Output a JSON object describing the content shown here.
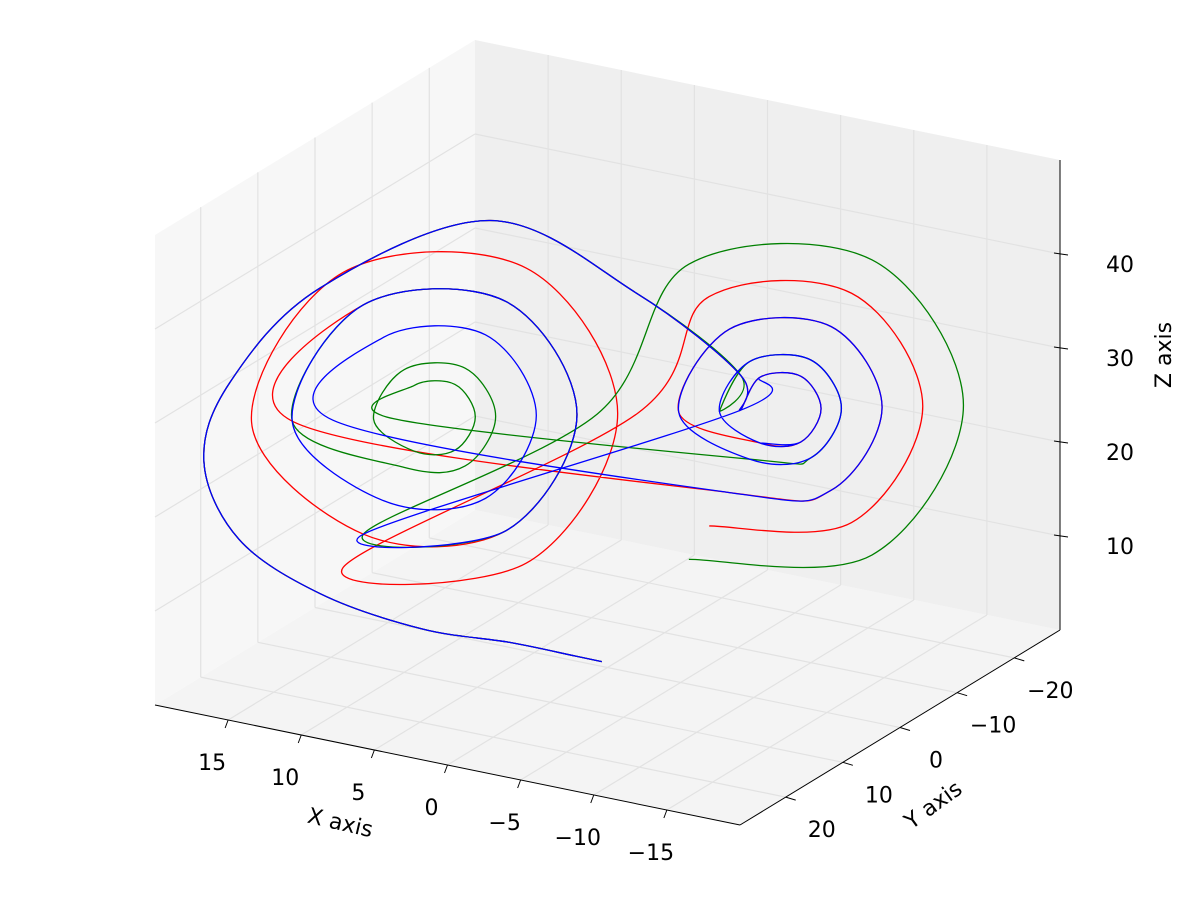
{
  "chart_data": {
    "type": "line3d",
    "xlabel": "X axis",
    "ylabel": "Y axis",
    "zlabel": "Z axis",
    "xlim": [
      -20,
      20
    ],
    "ylim": [
      -28,
      28
    ],
    "zlim": [
      0,
      50
    ],
    "xticks": [
      15,
      10,
      5,
      0,
      {
        "value": -5,
        "label": "−5"
      },
      {
        "value": -10,
        "label": "−10"
      },
      {
        "value": -15,
        "label": "−15"
      }
    ],
    "yticks": [
      {
        "value": -20,
        "label": "−20"
      },
      {
        "value": -10,
        "label": "−10"
      },
      0,
      10,
      20
    ],
    "zticks": [
      10,
      20,
      30,
      40
    ],
    "grid": true,
    "series": [
      {
        "color": "#ff0000",
        "x": [
          0,
          1,
          4,
          8,
          13,
          17,
          19,
          18,
          15,
          8,
          0,
          -6,
          -6.5,
          -7.5,
          -9.5,
          -10.5,
          -9.5,
          -7.5,
          -3.5,
          -6,
          -11,
          -13.5,
          -11,
          -6,
          15.5,
          12,
          5,
          1.5,
          5,
          12,
          17.5,
          13,
          4,
          -0.5,
          4,
          13,
          -1.5,
          -5,
          -12,
          -15.5,
          -12,
          -5
        ],
        "y": [
          1,
          3,
          7,
          12,
          17,
          21,
          22,
          20,
          12,
          0,
          -5,
          -8,
          -6.5,
          -7.5,
          -9.5,
          -10.5,
          -9.5,
          -7.5,
          -3.5,
          -6,
          -11,
          -13.5,
          -11,
          -6,
          15.5,
          12,
          5,
          1.5,
          5,
          12,
          17.5,
          13,
          4,
          -0.5,
          4,
          13,
          -1.5,
          -5,
          -12,
          -15.5,
          -12,
          -5
        ],
        "z": [
          1,
          2,
          4,
          6,
          10,
          16,
          24,
          32,
          40,
          45,
          38,
          30,
          27,
          30.5,
          30.5,
          27,
          23.5,
          23.5,
          27,
          35.7,
          35.7,
          27,
          18.3,
          18.3,
          27,
          39.2,
          39.2,
          27,
          14.8,
          14.8,
          27,
          42.7,
          42.7,
          27,
          11.3,
          11.3,
          27,
          39.2,
          39.2,
          27,
          14.8,
          14.8
        ]
      },
      {
        "color": "#008000",
        "x": [
          0,
          1,
          4,
          8,
          13,
          17,
          19,
          18,
          15,
          8,
          0,
          -6,
          -5.5,
          -7,
          -10,
          -11.5,
          -10,
          -7,
          10.5,
          9.5,
          7.5,
          6.5,
          7.5,
          9.5,
          11.5,
          10,
          7,
          5.5,
          7,
          10,
          15.5,
          12,
          5,
          1.5,
          5,
          12,
          0.5,
          -4,
          -13,
          -17.5,
          -13,
          -4
        ],
        "y": [
          1,
          3,
          7,
          12,
          17,
          21,
          22,
          20,
          12,
          0,
          -5,
          -8,
          -5.5,
          -7,
          -10,
          -11.5,
          -10,
          -7,
          10.5,
          9.5,
          7.5,
          6.5,
          7.5,
          9.5,
          11.5,
          10,
          7,
          5.5,
          7,
          10,
          15.5,
          12,
          5,
          1.5,
          5,
          12,
          0.5,
          -4,
          -13,
          -17.5,
          -13,
          -4
        ],
        "z": [
          1,
          2,
          4,
          6,
          10,
          16,
          24,
          32,
          40,
          45,
          38,
          30,
          27,
          32.2,
          32.2,
          27,
          21.8,
          21.8,
          27,
          30.5,
          30.5,
          27,
          23.5,
          23.5,
          27,
          32.2,
          32.2,
          27,
          21.8,
          21.8,
          27,
          39.2,
          39.2,
          27,
          14.8,
          14.8,
          27,
          42.7,
          42.7,
          27,
          11.3,
          11.3
        ]
      },
      {
        "color": "#0000ff",
        "x": [
          0,
          1,
          4,
          8,
          13,
          17,
          19,
          18,
          15,
          8,
          0,
          -6,
          -6.5,
          -7.5,
          -9.5,
          -10.5,
          -9.5,
          -7.5,
          -5.5,
          -7,
          -10,
          -11.5,
          -10,
          -7,
          -3.5,
          -6,
          -11,
          -13.5,
          -11,
          -6,
          13.5,
          11,
          6,
          3.5,
          6,
          11,
          15.5,
          12,
          5,
          1.5,
          5,
          12,
          -6.5,
          -7.5,
          -9.5,
          -10.5,
          -9.5,
          -7.5
        ],
        "y": [
          1,
          3,
          7,
          12,
          17,
          21,
          22,
          20,
          12,
          0,
          -5,
          -8,
          -6.5,
          -7.5,
          -9.5,
          -10.5,
          -9.5,
          -7.5,
          -5.5,
          -7,
          -10,
          -11.5,
          -10,
          -7,
          -3.5,
          -6,
          -11,
          -13.5,
          -11,
          -6,
          13.5,
          11,
          6,
          3.5,
          6,
          11,
          15.5,
          12,
          5,
          1.5,
          5,
          12,
          -6.5,
          -7.5,
          -9.5,
          -10.5,
          -9.5,
          -7.5
        ],
        "z": [
          1,
          2,
          4,
          6,
          10,
          16,
          24,
          32,
          40,
          45,
          38,
          30,
          27,
          30.5,
          30.5,
          27,
          23.5,
          23.5,
          27,
          32.2,
          32.2,
          27,
          21.8,
          21.8,
          27,
          35.7,
          35.7,
          27,
          18.3,
          18.3,
          27,
          35.7,
          35.7,
          27,
          18.3,
          18.3,
          27,
          39.2,
          39.2,
          27,
          14.8,
          14.8,
          27,
          30.5,
          30.5,
          27,
          23.5,
          23.5
        ]
      }
    ]
  }
}
